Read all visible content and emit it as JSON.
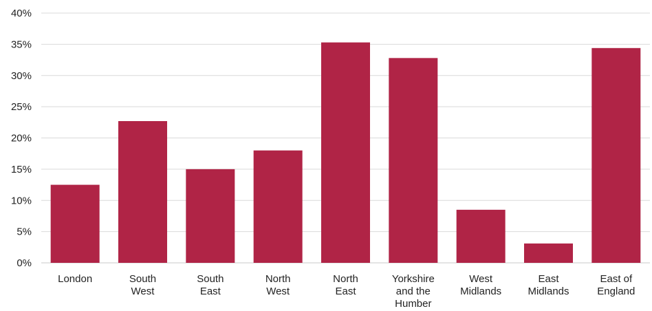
{
  "chart_data": {
    "type": "bar",
    "categories": [
      [
        "London"
      ],
      [
        "South",
        "West"
      ],
      [
        "South",
        "East"
      ],
      [
        "North",
        "West"
      ],
      [
        "North",
        "East"
      ],
      [
        "Yorkshire",
        "and the",
        "Humber"
      ],
      [
        "West",
        "Midlands"
      ],
      [
        "East",
        "Midlands"
      ],
      [
        "East of",
        "England"
      ]
    ],
    "values": [
      12.5,
      22.7,
      15.0,
      18.0,
      35.3,
      32.8,
      8.5,
      3.1,
      34.4
    ],
    "ylim": [
      0,
      40
    ],
    "yticks": [
      0,
      5,
      10,
      15,
      20,
      25,
      30,
      35,
      40
    ],
    "tick_suffix": "%",
    "grid": true,
    "colors": {
      "bar": "#b02446"
    }
  }
}
